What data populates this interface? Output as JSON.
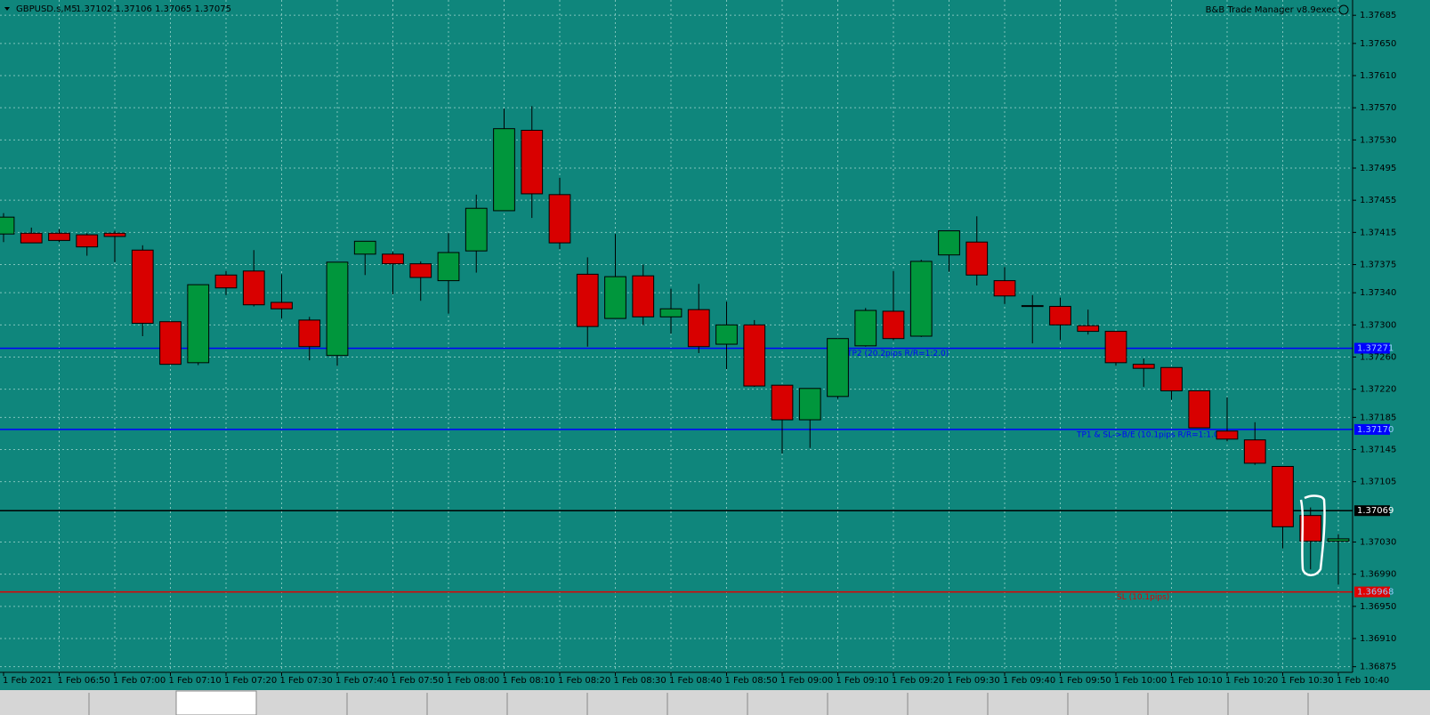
{
  "chart_data": {
    "type": "candlestick",
    "header": {
      "symbol": "GBPUSD.s,M5",
      "prices": "1.37102 1.37106 1.37065 1.37075"
    },
    "indicator": "B&B Trade Manager v8.9exec",
    "categories": [
      "1 Feb 2021",
      null,
      "1 Feb 06:50",
      null,
      "1 Feb 07:00",
      null,
      "1 Feb 07:10",
      null,
      "1 Feb 07:20",
      null,
      "1 Feb 07:30",
      null,
      "1 Feb 07:40",
      null,
      "1 Feb 07:50",
      null,
      "1 Feb 08:00",
      null,
      "1 Feb 08:10",
      null,
      "1 Feb 08:20",
      null,
      "1 Feb 08:30",
      null,
      "1 Feb 08:40",
      null,
      "1 Feb 08:50",
      null,
      "1 Feb 09:00",
      null,
      "1 Feb 09:10",
      null,
      "1 Feb 09:20",
      null,
      "1 Feb 09:30",
      null,
      "1 Feb 09:40",
      null,
      "1 Feb 09:50",
      null,
      "1 Feb 10:00",
      null,
      "1 Feb 10:10",
      null,
      "1 Feb 10:20",
      null,
      "1 Feb 10:30",
      null,
      "1 Feb 10:40"
    ],
    "open": [
      1.37413,
      1.37414,
      1.37414,
      1.37412,
      1.37414,
      1.37393,
      1.37304,
      1.37253,
      1.37362,
      1.37367,
      1.37328,
      1.37306,
      1.37262,
      1.37388,
      1.37388,
      1.37376,
      1.37355,
      1.37392,
      1.37442,
      1.37542,
      1.37462,
      1.37363,
      1.37308,
      1.37361,
      1.3731,
      1.37319,
      1.37276,
      1.373,
      1.37225,
      1.37182,
      1.37211,
      1.37274,
      1.37317,
      1.37286,
      1.37387,
      1.37403,
      1.37355,
      1.37324,
      1.37323,
      1.37299,
      1.37292,
      1.37251,
      1.37247,
      1.37218,
      1.37168,
      1.37157,
      1.37124,
      1.37063,
      1.37031
    ],
    "high": [
      1.37439,
      1.37421,
      1.37419,
      1.37414,
      1.37417,
      1.37399,
      1.37304,
      1.3735,
      1.37367,
      1.37393,
      1.37363,
      1.3731,
      1.37378,
      1.37404,
      1.37391,
      1.37379,
      1.37414,
      1.37462,
      1.37569,
      1.37572,
      1.37483,
      1.37384,
      1.37413,
      1.37375,
      1.37345,
      1.37351,
      1.37329,
      1.37306,
      1.37225,
      1.37221,
      1.37283,
      1.37321,
      1.37367,
      1.37381,
      1.37417,
      1.37435,
      1.37372,
      1.37337,
      1.37334,
      1.37319,
      1.37292,
      1.37258,
      1.37247,
      1.37218,
      1.3721,
      1.37179,
      1.37124,
      1.37073,
      1.3704
    ],
    "low": [
      1.37403,
      1.37402,
      1.37403,
      1.37386,
      1.37378,
      1.37286,
      1.37251,
      1.3725,
      1.37337,
      1.37323,
      1.37308,
      1.37256,
      1.37249,
      1.37362,
      1.37338,
      1.3733,
      1.37314,
      1.37365,
      1.37442,
      1.37433,
      1.37394,
      1.37273,
      1.37308,
      1.373,
      1.37289,
      1.37265,
      1.37245,
      1.37223,
      1.3714,
      1.37147,
      1.37208,
      1.37273,
      1.37281,
      1.37285,
      1.37366,
      1.37349,
      1.37326,
      1.37277,
      1.37281,
      1.37288,
      1.37249,
      1.37223,
      1.37207,
      1.37172,
      1.37155,
      1.37126,
      1.37022,
      1.36996,
      1.36977
    ],
    "close": [
      1.37434,
      1.37402,
      1.37405,
      1.37397,
      1.3741,
      1.37302,
      1.37251,
      1.3735,
      1.37346,
      1.37325,
      1.3732,
      1.37273,
      1.37378,
      1.37404,
      1.37376,
      1.37359,
      1.3739,
      1.37445,
      1.37544,
      1.37463,
      1.37402,
      1.37298,
      1.3736,
      1.3731,
      1.3732,
      1.37273,
      1.373,
      1.37224,
      1.37182,
      1.37221,
      1.37283,
      1.37318,
      1.37283,
      1.37379,
      1.37417,
      1.37362,
      1.37336,
      1.37323,
      1.373,
      1.37292,
      1.37253,
      1.37246,
      1.37218,
      1.37172,
      1.37158,
      1.37128,
      1.37049,
      1.37031,
      1.37034
    ],
    "up_color": "#00963c",
    "down_color": "#d80000",
    "ylim": [
      1.36868,
      1.37704
    ],
    "yticks": [
      {
        "value": 1.37685,
        "label": "1.37685"
      },
      {
        "value": 1.3765,
        "label": "1.37650"
      },
      {
        "value": 1.3761,
        "label": "1.37610"
      },
      {
        "value": 1.3757,
        "label": "1.37570"
      },
      {
        "value": 1.3753,
        "label": "1.37530"
      },
      {
        "value": 1.37495,
        "label": "1.37495"
      },
      {
        "value": 1.37455,
        "label": "1.37455"
      },
      {
        "value": 1.37415,
        "label": "1.37415"
      },
      {
        "value": 1.37375,
        "label": "1.37375"
      },
      {
        "value": 1.3734,
        "label": "1.37340"
      },
      {
        "value": 1.373,
        "label": "1.37300"
      },
      {
        "value": 1.3726,
        "label": "1.37260"
      },
      {
        "value": 1.3722,
        "label": "1.37220"
      },
      {
        "value": 1.37185,
        "label": "1.37185"
      },
      {
        "value": 1.37145,
        "label": "1.37145"
      },
      {
        "value": 1.37105,
        "label": "1.37105"
      },
      {
        "value": 1.3703,
        "label": "1.37030"
      },
      {
        "value": 1.3699,
        "label": "1.36990"
      },
      {
        "value": 1.3695,
        "label": "1.36950"
      },
      {
        "value": 1.3691,
        "label": "1.36910"
      },
      {
        "value": 1.36875,
        "label": "1.36875"
      }
    ],
    "grid": true,
    "levels": [
      {
        "value": 1.37271,
        "label": "1.37271",
        "color": "#0000ff",
        "text": "TP2 (20.2pips R/R=1:2.0)"
      },
      {
        "value": 1.3717,
        "label": "1.37170",
        "color": "#0000ff",
        "text": "TP1 & SL->B/E (10.1pips R/R=1:1.0)"
      },
      {
        "value": 1.37069,
        "label": "1.37069",
        "color": "#000000"
      },
      {
        "value": 1.36968,
        "label": "1.36968",
        "color": "#e00000",
        "text": "SL (10.1pips)"
      }
    ]
  }
}
